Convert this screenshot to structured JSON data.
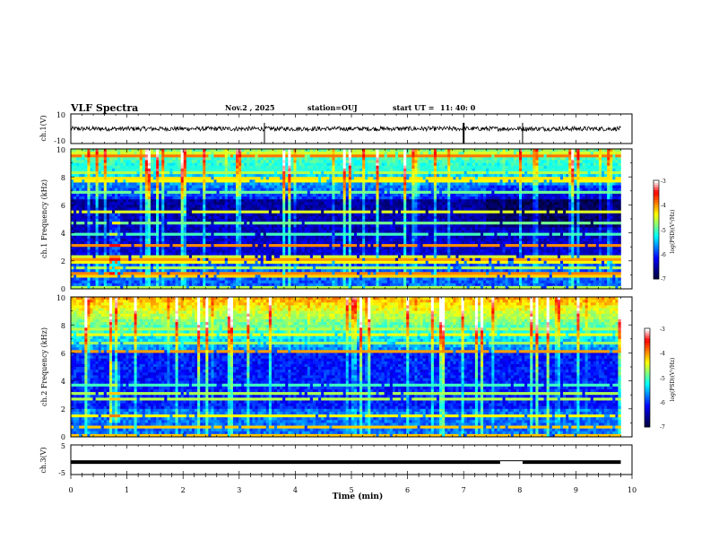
{
  "header": {
    "title": "VLF Spectra",
    "date": "Nov.2 , 2025",
    "station": "station=OUJ",
    "start_label": "start UT =",
    "start_time": "11: 40: 0"
  },
  "colors": {
    "trace": "#000000",
    "colormap": [
      "#000033",
      "#00008f",
      "#0000ff",
      "#0080ff",
      "#00ffff",
      "#80ff80",
      "#ffff00",
      "#ff8000",
      "#ff0000",
      "#ffffff"
    ]
  },
  "chart_data": [
    {
      "type": "line",
      "panel": "ch1",
      "ylabel": "ch.1(V)",
      "ylim": [
        -10,
        10
      ],
      "yticks": [
        "10",
        "-10"
      ],
      "x_min": [
        0,
        10
      ],
      "series": [
        {
          "baseline_V": 0,
          "noise_amplitude_V": 1.5,
          "spikes_min": [
            7.0,
            3.45,
            8.05
          ]
        }
      ]
    },
    {
      "type": "heatmap",
      "panel": "ch1-spectrogram",
      "ylabel": "ch.1 Frequency (kHz)",
      "ylim": [
        0,
        10
      ],
      "yticks": [
        "0",
        "2",
        "4",
        "6",
        "8",
        "10"
      ],
      "colorbar": {
        "label": "log(PSD)(V²/Hz)",
        "range": [
          -7,
          -3
        ],
        "ticks": [
          "-3",
          "-4",
          "-5",
          "-6",
          "-7"
        ]
      },
      "data_end_min": 9.8
    },
    {
      "type": "heatmap",
      "panel": "ch2-spectrogram",
      "ylabel": "ch.2 Frequency (kHz)",
      "ylim": [
        0,
        10
      ],
      "yticks": [
        "0",
        "2",
        "4",
        "6",
        "8",
        "10"
      ],
      "colorbar": {
        "label": "log(PSD)(V²/Hz)",
        "range": [
          -7,
          -3
        ],
        "ticks": [
          "-3",
          "-4",
          "-5",
          "-6",
          "-7"
        ]
      },
      "data_end_min": 9.8
    },
    {
      "type": "line",
      "panel": "ch3",
      "ylabel": "ch.3(V)",
      "ylim": [
        -5,
        5
      ],
      "yticks": [
        "5",
        "-5"
      ],
      "series": [
        {
          "level_V": -0.8,
          "gap_min": [
            7.65,
            8.05
          ]
        }
      ]
    },
    {
      "type": "axis",
      "panel": "time",
      "xlabel": "Time (min)",
      "xlim": [
        0,
        10
      ],
      "xticks": [
        "0",
        "1",
        "2",
        "3",
        "4",
        "5",
        "6",
        "7",
        "8",
        "9",
        "10"
      ]
    }
  ]
}
